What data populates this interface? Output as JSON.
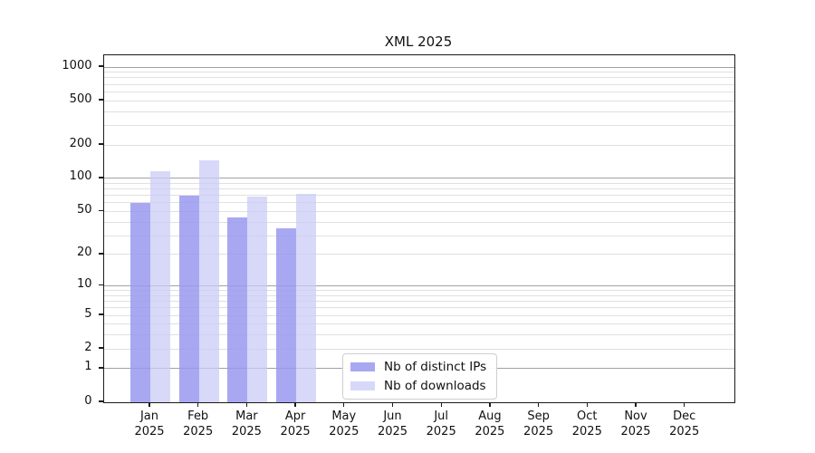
{
  "chart_data": {
    "type": "bar",
    "title": "XML 2025",
    "categories": [
      "Jan 2025",
      "Feb 2025",
      "Mar 2025",
      "Apr 2025",
      "May 2025",
      "Jun 2025",
      "Jul 2025",
      "Aug 2025",
      "Sep 2025",
      "Oct 2025",
      "Nov 2025",
      "Dec 2025"
    ],
    "series": [
      {
        "name": "Nb of distinct IPs",
        "color": "#a8a8f2",
        "values": [
          60,
          70,
          44,
          35,
          0,
          0,
          0,
          0,
          0,
          0,
          0,
          0
        ]
      },
      {
        "name": "Nb of downloads",
        "color": "#d8d8f8",
        "values": [
          117,
          146,
          69,
          72,
          0,
          0,
          0,
          0,
          0,
          0,
          0,
          0
        ]
      }
    ],
    "y_axis": {
      "scale": "log1p",
      "tick_values": [
        0,
        1,
        2,
        5,
        10,
        20,
        50,
        100,
        200,
        500,
        1000
      ],
      "max_value": 1276
    },
    "x_axis": {
      "tick_labels_two_lines": true
    },
    "grid": {
      "major_ticks": [
        1,
        10,
        100,
        1000
      ],
      "major_color": "#b0b0b0",
      "minor_color": "#e9e9e9"
    },
    "legend": {
      "position": "lower center"
    },
    "colors": {
      "background": "#ffffff",
      "spine": "#1a1a1a",
      "text": "#111111"
    }
  }
}
